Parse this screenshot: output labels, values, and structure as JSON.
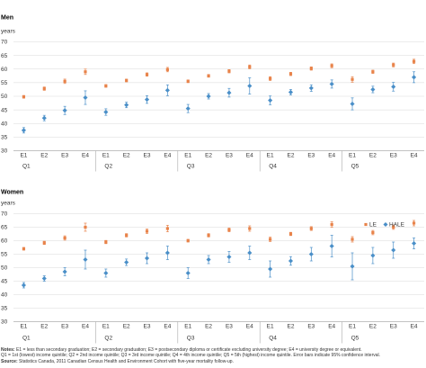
{
  "colors": {
    "le": "#e8834a",
    "hale": "#4a8fc8",
    "grid": "#d9d9d9"
  },
  "notes": {
    "notes_label": "Notes:",
    "notes_line1": "E1 = less than secondary graduation; E2 = secondary graduation; E3 = postsecondary diploma or certificate excluding university degree; E4 = university degree or equivalent.",
    "notes_line2": "Q1 = 1st (lowest) income quintile; Q2 = 2nd income quintile; Q3 = 3rd income quintile; Q4 = 4th income quintile; Q5 = 5th (highest) income quintile. Error bars indicate 95% confidence interval.",
    "source_label": "Source:",
    "source_text": "Statistics Canada, 2011 Canadian Census Health and Environment Cohort with five-year mortality follow-up."
  },
  "chart_data": [
    {
      "type": "scatter",
      "title": "Men",
      "ylabel": "years",
      "ylim": [
        30,
        70
      ],
      "yticks": [
        30,
        35,
        40,
        45,
        50,
        55,
        60,
        65,
        70
      ],
      "grid": true,
      "categories": [
        "E1",
        "E2",
        "E3",
        "E4",
        "E1",
        "E2",
        "E3",
        "E4",
        "E1",
        "E2",
        "E3",
        "E4",
        "E1",
        "E2",
        "E3",
        "E4",
        "E1",
        "E2",
        "E3",
        "E4"
      ],
      "groups": [
        "Q1",
        "Q2",
        "Q3",
        "Q4",
        "Q5"
      ],
      "legend": null,
      "series": [
        {
          "name": "LE",
          "values": [
            49.8,
            52.8,
            55.5,
            59.0,
            53.8,
            55.8,
            58.0,
            59.8,
            55.5,
            57.5,
            59.2,
            60.8,
            56.5,
            58.2,
            60.2,
            61.2,
            56.2,
            59.0,
            61.5,
            62.8
          ],
          "err": [
            0.5,
            0.6,
            0.8,
            1.0,
            0.5,
            0.5,
            0.6,
            0.8,
            0.5,
            0.5,
            0.6,
            0.7,
            0.7,
            0.6,
            0.6,
            0.7,
            1.0,
            0.6,
            0.7,
            0.8
          ]
        },
        {
          "name": "HALE",
          "values": [
            37.5,
            42.0,
            44.8,
            49.5,
            44.2,
            46.8,
            48.8,
            52.2,
            45.5,
            50.0,
            51.3,
            53.8,
            48.5,
            51.5,
            53.0,
            54.5,
            47.2,
            52.5,
            53.5,
            57.0
          ],
          "err": [
            1.0,
            1.0,
            1.5,
            2.5,
            1.2,
            1.0,
            1.4,
            2.0,
            1.5,
            1.0,
            1.6,
            3.0,
            1.6,
            1.0,
            1.2,
            1.5,
            2.2,
            1.2,
            1.6,
            2.0
          ]
        }
      ]
    },
    {
      "type": "scatter",
      "title": "Women",
      "ylabel": "years",
      "ylim": [
        30,
        70
      ],
      "yticks": [
        30,
        35,
        40,
        45,
        50,
        55,
        60,
        65,
        70
      ],
      "grid": true,
      "categories": [
        "E1",
        "E2",
        "E3",
        "E4",
        "E1",
        "E2",
        "E3",
        "E4",
        "E1",
        "E2",
        "E3",
        "E4",
        "E1",
        "E2",
        "E3",
        "E4",
        "E1",
        "E2",
        "E3",
        "E4"
      ],
      "groups": [
        "Q1",
        "Q2",
        "Q3",
        "Q4",
        "Q5"
      ],
      "legend": {
        "position": "top-right",
        "entries": [
          "LE",
          "HALE"
        ]
      },
      "series": [
        {
          "name": "LE",
          "values": [
            57.0,
            59.2,
            61.0,
            65.0,
            59.5,
            62.0,
            63.5,
            64.5,
            60.0,
            62.0,
            64.0,
            64.5,
            60.5,
            62.5,
            64.5,
            66.0,
            60.5,
            63.0,
            65.0,
            66.5
          ],
          "err": [
            0.5,
            0.6,
            0.8,
            1.5,
            0.6,
            0.6,
            0.8,
            1.2,
            0.5,
            0.6,
            0.7,
            1.0,
            0.8,
            0.6,
            0.7,
            1.0,
            1.0,
            0.8,
            0.8,
            1.0
          ]
        },
        {
          "name": "HALE",
          "values": [
            43.5,
            46.0,
            48.5,
            53.0,
            48.0,
            52.0,
            53.5,
            55.5,
            48.0,
            53.0,
            54.0,
            55.5,
            49.5,
            52.5,
            55.0,
            58.0,
            50.5,
            54.5,
            56.5,
            59.0
          ],
          "err": [
            1.0,
            1.0,
            1.5,
            3.5,
            1.5,
            1.2,
            2.0,
            2.5,
            2.0,
            1.5,
            2.0,
            2.5,
            3.0,
            1.6,
            2.5,
            4.0,
            5.0,
            3.0,
            3.0,
            2.0
          ]
        }
      ]
    }
  ]
}
